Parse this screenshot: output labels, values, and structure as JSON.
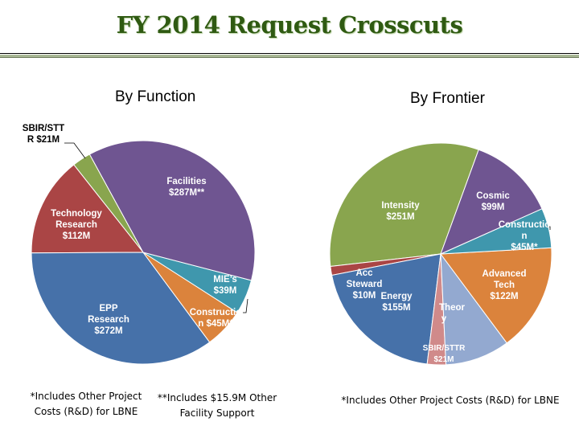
{
  "title": "FY 2014 Request Crosscuts",
  "chart_data": [
    {
      "type": "pie",
      "title": "By Function",
      "slices": [
        {
          "label": "Facilities $287M**",
          "name": "Facilities",
          "value": 287,
          "color": "#6f5591"
        },
        {
          "label": "MIE's $39M",
          "name": "MIE's",
          "value": 39,
          "color": "#3f97ad"
        },
        {
          "label": "Constructio n $45M*",
          "name": "Construction",
          "value": 45,
          "color": "#db833c"
        },
        {
          "label": "EPP Research $272M",
          "name": "EPP Research",
          "value": 272,
          "color": "#4671a9"
        },
        {
          "label": "Technology Research $112M",
          "name": "Technology Research",
          "value": 112,
          "color": "#aa4545"
        },
        {
          "label": "SBIR/STT R $21M",
          "name": "SBIR/STTR",
          "value": 21,
          "color": "#89a54e"
        }
      ]
    },
    {
      "type": "pie",
      "title": "By Frontier",
      "slices": [
        {
          "label": "Cosmic $99M",
          "name": "Cosmic",
          "value": 99,
          "color": "#6f5591"
        },
        {
          "label": "Constructio n $45M*",
          "name": "Construction",
          "value": 45,
          "color": "#3f97ad"
        },
        {
          "label": "Advanced Tech $122M",
          "name": "Advanced Tech",
          "value": 122,
          "color": "#db833c"
        },
        {
          "label": "Theor y",
          "name": "Theory",
          "value": 73,
          "color": "#93a9d0"
        },
        {
          "label": "SBIR/STTR $21M",
          "name": "SBIR/STTR",
          "value": 21,
          "color": "#d08a8a"
        },
        {
          "label": "Energy $155M",
          "name": "Energy",
          "value": 155,
          "color": "#4671a9"
        },
        {
          "label": "Acc Steward $10M",
          "name": "Acc Steward",
          "value": 10,
          "color": "#aa4545"
        },
        {
          "label": "Intensity $251M",
          "name": "Intensity",
          "value": 251,
          "color": "#89a54e"
        }
      ]
    }
  ],
  "notes": {
    "left1": "*Includes Other Project Costs (R&D) for LBNE",
    "left2": "**Includes $15.9M Other Facility Support",
    "right": "*Includes Other Project Costs (R&D) for LBNE"
  },
  "labels": {
    "f_sbir": [
      "SBIR/STT",
      "R $21M"
    ],
    "f_fac": [
      "Facilities",
      "$287M**"
    ],
    "f_tech": [
      "Technology",
      "Research",
      "$112M"
    ],
    "f_mie": [
      "MIE’s",
      "$39M"
    ],
    "f_con": [
      "Constructio",
      "n $45M*"
    ],
    "f_epp": [
      "EPP",
      "Research",
      "$272M"
    ],
    "r_cos": [
      "Cosmic",
      "$99M"
    ],
    "r_int": [
      "Intensity",
      "$251M"
    ],
    "r_con": [
      "Constructio",
      "n",
      "$45M*"
    ],
    "r_adv": [
      "Advanced",
      "Tech",
      "$122M"
    ],
    "r_acc": [
      "Acc",
      "Steward",
      "$10M"
    ],
    "r_en": [
      "Energy",
      "$155M"
    ],
    "r_th": [
      "Theor",
      "y"
    ],
    "r_sb": [
      "SBIR/STTR",
      "$21M"
    ]
  }
}
